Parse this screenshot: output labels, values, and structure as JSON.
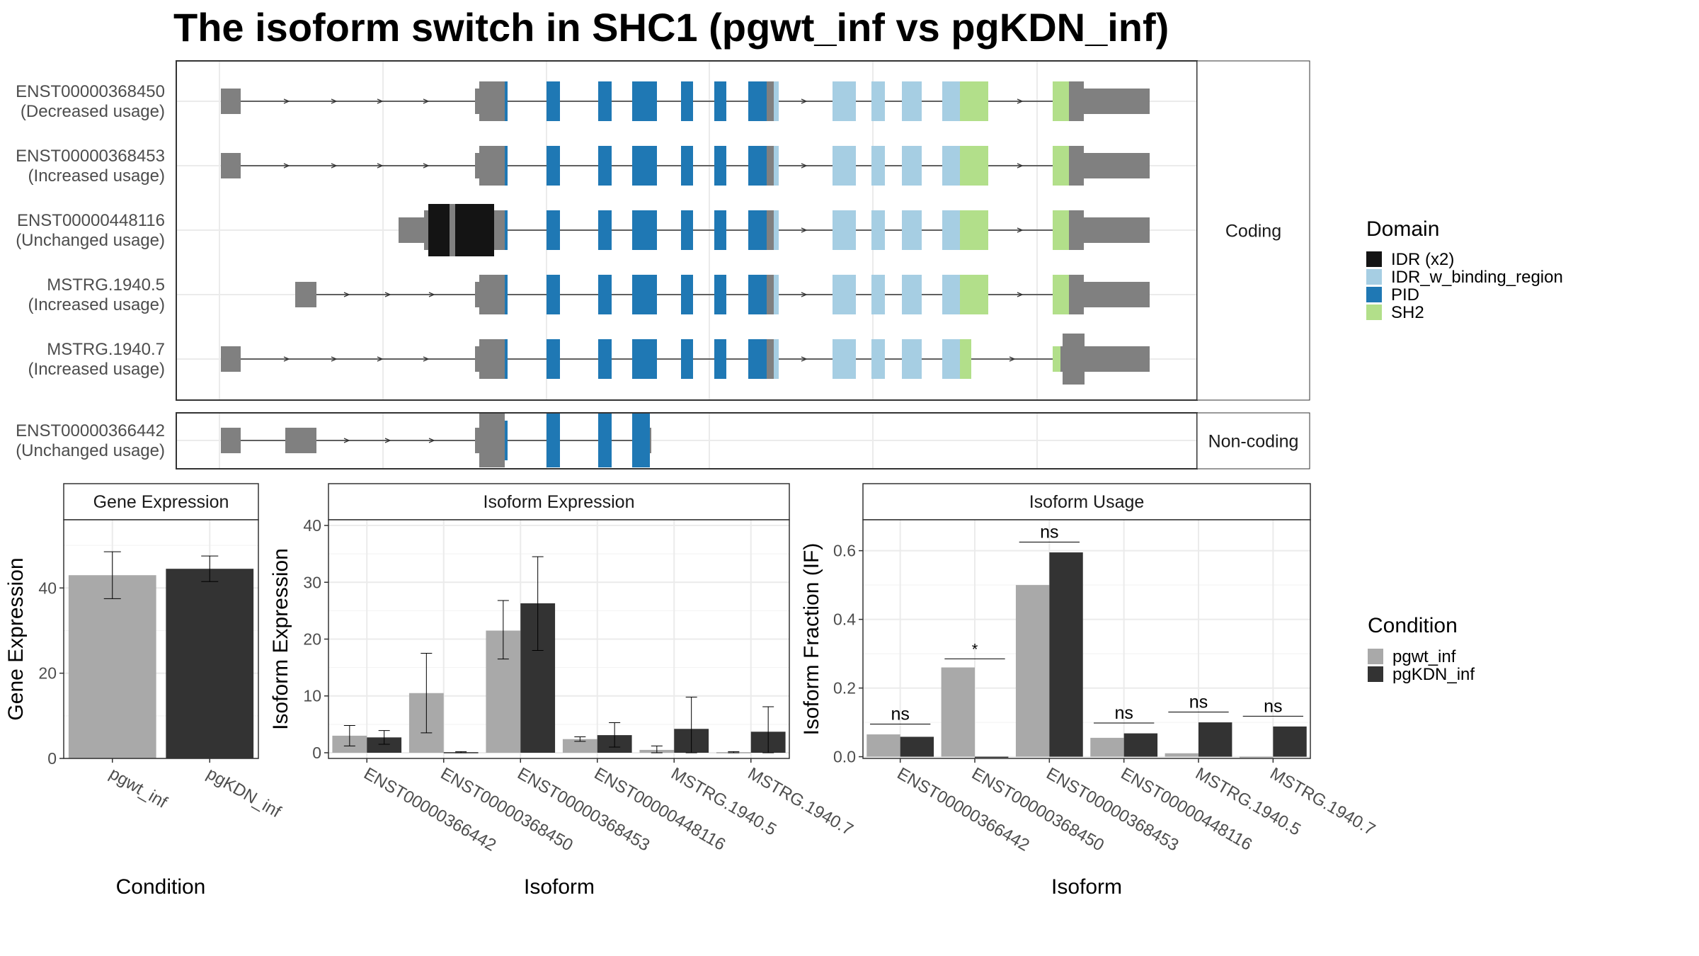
{
  "title": "The isoform switch in SHC1 (pgwt_inf vs pgKDN_inf)",
  "colors": {
    "exon": "#808080",
    "IDR (x2)": "#141414",
    "IDR_w_binding_region": "#a6cee3",
    "PID": "#1f78b4",
    "SH2": "#b2df8a",
    "pgwt_inf": "#a9a9a9",
    "pgKDN_inf": "#333333",
    "panel_border": "#333333",
    "grid": "#ebebeb",
    "strip_bg": "#ffffff"
  },
  "transcript_panel": {
    "facets": [
      "Coding",
      "Non-coding"
    ],
    "coding": [
      {
        "id": "ENST00000368450",
        "usage": "(Decreased usage)"
      },
      {
        "id": "ENST00000368453",
        "usage": "(Increased usage)"
      },
      {
        "id": "ENST00000448116",
        "usage": "(Unchanged usage)"
      },
      {
        "id": "MSTRG.1940.5",
        "usage": "(Increased usage)"
      },
      {
        "id": "MSTRG.1940.7",
        "usage": "(Increased usage)"
      }
    ],
    "noncoding": [
      {
        "id": "ENST00000366442",
        "usage": "(Unchanged usage)"
      }
    ]
  },
  "domain_legend": {
    "title": "Domain",
    "items": [
      "IDR (x2)",
      "IDR_w_binding_region",
      "PID",
      "SH2"
    ]
  },
  "condition_legend": {
    "title": "Condition",
    "items": [
      "pgwt_inf",
      "pgKDN_inf"
    ]
  },
  "chart_data": [
    {
      "type": "bar",
      "title": "Gene Expression",
      "xlabel": "Condition",
      "ylabel": "Gene Expression",
      "ylim": [
        0,
        56
      ],
      "yticks": [
        0,
        20,
        40
      ],
      "categories": [
        "pgwt_inf",
        "pgKDN_inf"
      ],
      "values": [
        43,
        44.5
      ],
      "errors": [
        [
          37.5,
          48.5
        ],
        [
          41.5,
          47.5
        ]
      ],
      "colors": [
        "#a9a9a9",
        "#333333"
      ]
    },
    {
      "type": "bar",
      "title": "Isoform Expression",
      "xlabel": "Isoform",
      "ylabel": "Isoform Expression",
      "ylim": [
        -1,
        41
      ],
      "yticks": [
        0,
        10,
        20,
        30,
        40
      ],
      "categories": [
        "ENST00000366442",
        "ENST00000368450",
        "ENST00000368453",
        "ENST00000448116",
        "MSTRG.1940.5",
        "MSTRG.1940.7"
      ],
      "series": [
        {
          "name": "pgwt_inf",
          "values": [
            3.0,
            10.5,
            21.5,
            2.4,
            0.5,
            0.1
          ],
          "errors": [
            [
              1.2,
              4.8
            ],
            [
              3.5,
              17.5
            ],
            [
              16.5,
              26.8
            ],
            [
              2.0,
              2.8
            ],
            [
              0.0,
              1.2
            ],
            [
              0.0,
              0.2
            ]
          ]
        },
        {
          "name": "pgKDN_inf",
          "values": [
            2.7,
            0.1,
            26.3,
            3.1,
            4.2,
            3.7
          ],
          "errors": [
            [
              1.5,
              3.9
            ],
            [
              0.0,
              0.2
            ],
            [
              18.0,
              34.5
            ],
            [
              1.0,
              5.3
            ],
            [
              0.0,
              9.8
            ],
            [
              0.0,
              8.1
            ]
          ]
        }
      ]
    },
    {
      "type": "bar",
      "title": "Isoform Usage",
      "xlabel": "Isoform",
      "ylabel": "Isoform Fraction (IF)",
      "ylim": [
        -0.005,
        0.69
      ],
      "yticks": [
        0.0,
        0.2,
        0.4,
        0.6
      ],
      "ytick_labels": [
        "0.0",
        "0.2",
        "0.4",
        "0.6"
      ],
      "categories": [
        "ENST00000366442",
        "ENST00000368450",
        "ENST00000368453",
        "ENST00000448116",
        "MSTRG.1940.5",
        "MSTRG.1940.7"
      ],
      "series": [
        {
          "name": "pgwt_inf",
          "values": [
            0.065,
            0.26,
            0.5,
            0.055,
            0.01,
            0.0
          ]
        },
        {
          "name": "pgKDN_inf",
          "values": [
            0.058,
            0.0,
            0.595,
            0.068,
            0.1,
            0.088
          ]
        }
      ],
      "significance": [
        "ns",
        "*",
        "ns",
        "ns",
        "ns",
        "ns"
      ],
      "sig_y": [
        0.095,
        0.285,
        0.625,
        0.098,
        0.13,
        0.118
      ]
    }
  ]
}
